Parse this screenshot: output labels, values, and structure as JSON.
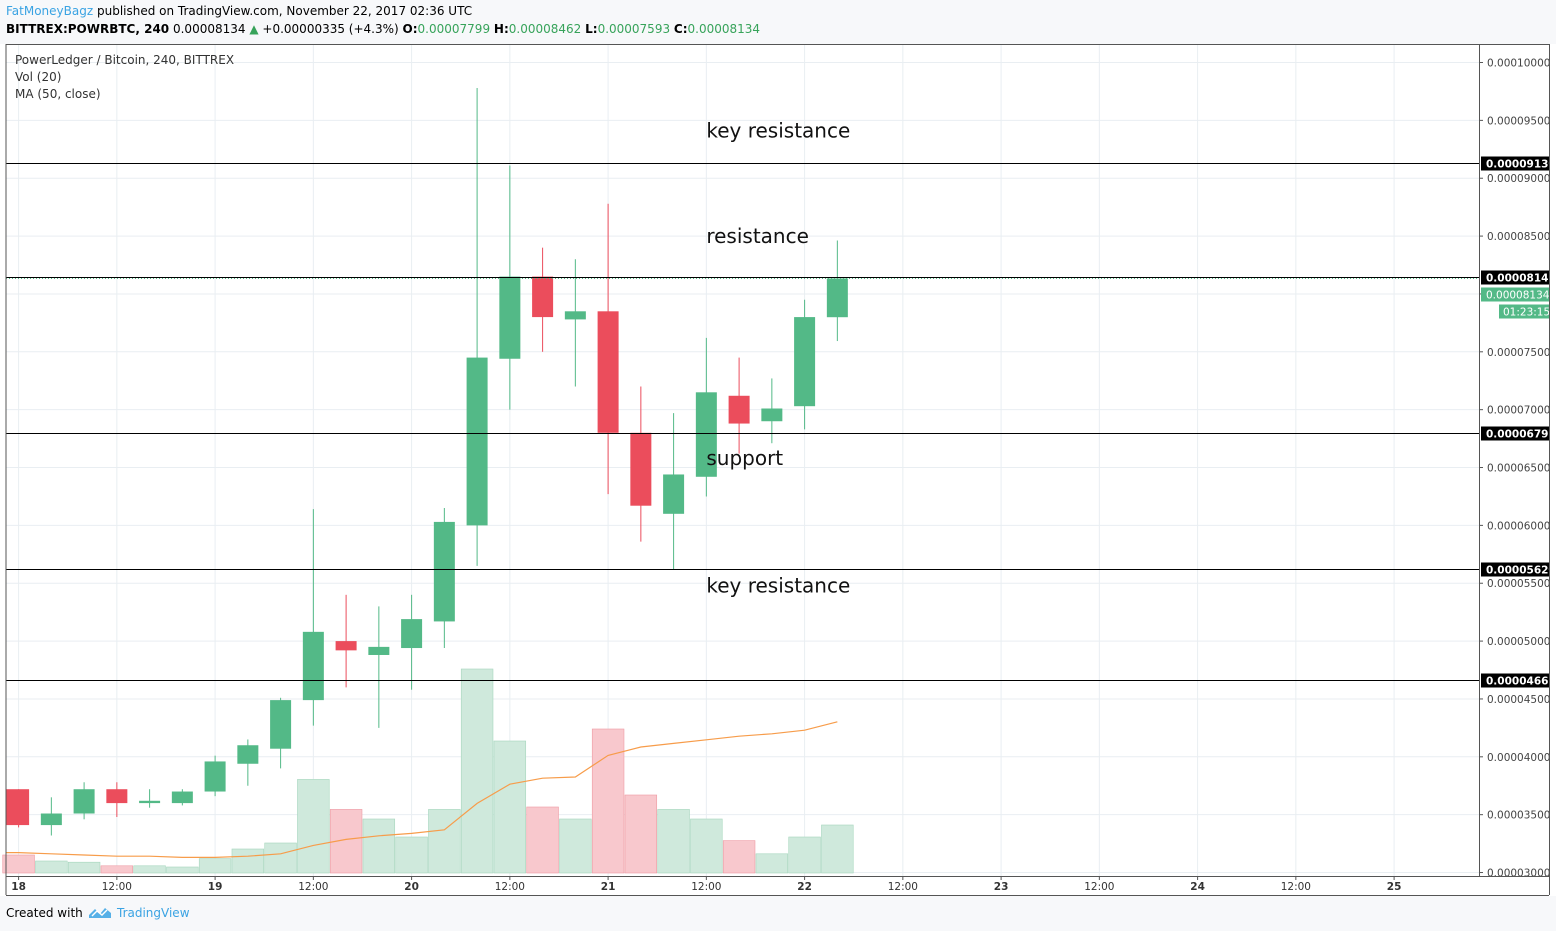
{
  "header": {
    "author": "FatMoneyBagz",
    "published_text": "published on TradingView.com, November 22, 2017 02:36 UTC",
    "symbol": "BITTREX:POWRBTC, 240",
    "last_price": "0.00008134",
    "change": "+0.00000335 (+4.3%)",
    "open_label": "O:",
    "open": "0.00007799",
    "high_label": "H:",
    "high": "0.00008462",
    "low_label": "L:",
    "low": "0.00007593",
    "close_label": "C:",
    "close": "0.00008134"
  },
  "legend": {
    "title": "PowerLedger / Bitcoin, 240, BITTREX",
    "volume": "Vol (20)",
    "ma": "MA (50, close)"
  },
  "footer": {
    "created_with": "Created with",
    "brand": "TradingView"
  },
  "colors": {
    "up": "#53b987",
    "down": "#eb4d5c",
    "vol_up": "#cfe9dc",
    "vol_down": "#f8c8cd",
    "ma": "#f79c4a",
    "grid": "#e9eef2",
    "brand": "#3aa3e3"
  },
  "chart_data": {
    "type": "candlestick",
    "x_axis": {
      "tick_labels": [
        "18",
        "12:00",
        "19",
        "12:00",
        "20",
        "12:00",
        "21",
        "12:00",
        "22",
        "12:00",
        "23",
        "12:00",
        "24",
        "12:00",
        "25"
      ],
      "tick_positions": [
        0.5,
        3.5,
        6.5,
        9.5,
        12.5,
        15.5,
        18.5,
        21.5,
        24.5,
        27.5,
        30.5,
        33.5,
        36.5,
        39.5,
        42.5
      ]
    },
    "y_axis": {
      "range": [
        2.97e-05,
        0.0001016
      ],
      "tick_labels": [
        "0.00003000",
        "0.00003500",
        "0.00004000",
        "0.00004500",
        "0.00005000",
        "0.00005500",
        "0.00006000",
        "0.00006500",
        "0.00007000",
        "0.00007500",
        "0.00008000",
        "0.00008500",
        "0.00009000",
        "0.00009500",
        "0.00010000"
      ]
    },
    "grid": true,
    "candles": [
      {
        "o": 3.72e-05,
        "h": 3.72e-05,
        "l": 3.39e-05,
        "c": 3.41e-05
      },
      {
        "o": 3.41e-05,
        "h": 3.65e-05,
        "l": 3.32e-05,
        "c": 3.51e-05
      },
      {
        "o": 3.51e-05,
        "h": 3.78e-05,
        "l": 3.46e-05,
        "c": 3.72e-05
      },
      {
        "o": 3.72e-05,
        "h": 3.78e-05,
        "l": 3.48e-05,
        "c": 3.6e-05
      },
      {
        "o": 3.6e-05,
        "h": 3.72e-05,
        "l": 3.56e-05,
        "c": 3.62e-05
      },
      {
        "o": 3.6e-05,
        "h": 3.72e-05,
        "l": 3.58e-05,
        "c": 3.7e-05
      },
      {
        "o": 3.7e-05,
        "h": 4.01e-05,
        "l": 3.66e-05,
        "c": 3.96e-05
      },
      {
        "o": 3.94e-05,
        "h": 4.15e-05,
        "l": 3.75e-05,
        "c": 4.1e-05
      },
      {
        "o": 4.07e-05,
        "h": 4.51e-05,
        "l": 3.9e-05,
        "c": 4.49e-05
      },
      {
        "o": 4.49e-05,
        "h": 6.14e-05,
        "l": 4.27e-05,
        "c": 5.08e-05
      },
      {
        "o": 5e-05,
        "h": 5.4e-05,
        "l": 4.6e-05,
        "c": 4.92e-05
      },
      {
        "o": 4.88e-05,
        "h": 5.3e-05,
        "l": 4.25e-05,
        "c": 4.95e-05
      },
      {
        "o": 4.94e-05,
        "h": 5.4e-05,
        "l": 4.58e-05,
        "c": 5.19e-05
      },
      {
        "o": 5.17e-05,
        "h": 6.15e-05,
        "l": 4.94e-05,
        "c": 6.03e-05
      },
      {
        "o": 6e-05,
        "h": 9.78e-05,
        "l": 5.65e-05,
        "c": 7.45e-05
      },
      {
        "o": 7.44e-05,
        "h": 9.11e-05,
        "l": 7e-05,
        "c": 8.15e-05
      },
      {
        "o": 8.15e-05,
        "h": 8.4e-05,
        "l": 7.5e-05,
        "c": 7.8e-05
      },
      {
        "o": 7.78e-05,
        "h": 8.3e-05,
        "l": 7.2e-05,
        "c": 7.85e-05
      },
      {
        "o": 7.85e-05,
        "h": 8.78e-05,
        "l": 6.27e-05,
        "c": 6.8e-05
      },
      {
        "o": 6.8e-05,
        "h": 7.2e-05,
        "l": 5.86e-05,
        "c": 6.17e-05
      },
      {
        "o": 6.1e-05,
        "h": 6.97e-05,
        "l": 5.62e-05,
        "c": 6.44e-05
      },
      {
        "o": 6.42e-05,
        "h": 7.62e-05,
        "l": 6.25e-05,
        "c": 7.15e-05
      },
      {
        "o": 7.12e-05,
        "h": 7.45e-05,
        "l": 6.62e-05,
        "c": 6.88e-05
      },
      {
        "o": 6.9e-05,
        "h": 7.27e-05,
        "l": 6.71e-05,
        "c": 7.01e-05
      },
      {
        "o": 7.03e-05,
        "h": 7.95e-05,
        "l": 6.83e-05,
        "c": 7.8e-05
      },
      {
        "o": 7.799e-05,
        "h": 8.462e-05,
        "l": 7.593e-05,
        "c": 8.134e-05
      }
    ],
    "volume_series": {
      "name": "Vol (20)",
      "relative_values": [
        1.5,
        1.0,
        0.9,
        0.6,
        0.6,
        0.5,
        1.2,
        2.0,
        2.5,
        7.8,
        5.3,
        4.5,
        3.0,
        5.3,
        17.0,
        11.0,
        5.5,
        4.5,
        12.0,
        6.5,
        5.3,
        4.5,
        2.7,
        1.6,
        3.0,
        4.0
      ]
    },
    "ma_series": {
      "name": "MA (50, close)",
      "values_in_volume_scale": [
        1.7,
        1.6,
        1.5,
        1.4,
        1.4,
        1.3,
        1.3,
        1.4,
        1.6,
        2.3,
        2.8,
        3.1,
        3.3,
        3.6,
        5.8,
        7.4,
        7.9,
        8.0,
        9.8,
        10.5,
        10.8,
        11.1,
        11.4,
        11.6,
        11.9,
        12.6
      ]
    },
    "horizontal_lines": [
      {
        "price": 9.13e-05,
        "label": "0.00009130"
      },
      {
        "price": 8.147e-05,
        "label": "0.00008147"
      },
      {
        "price": 6.797e-05,
        "label": "0.00006797"
      },
      {
        "price": 5.62e-05,
        "label": "0.00005620"
      },
      {
        "price": 4.662e-05,
        "label": "0.00004662"
      }
    ],
    "last_price_label": {
      "price": 8.134e-05,
      "label": "0.00008134",
      "countdown": "01:23:15"
    },
    "annotations": [
      {
        "text": "key resistance",
        "price": 9.35e-05,
        "x": 21.5
      },
      {
        "text": "resistance",
        "price": 8.44e-05,
        "x": 21.5
      },
      {
        "text": "support",
        "price": 6.52e-05,
        "x": 21.5
      },
      {
        "text": "key resistance",
        "price": 5.42e-05,
        "x": 21.5
      }
    ]
  }
}
